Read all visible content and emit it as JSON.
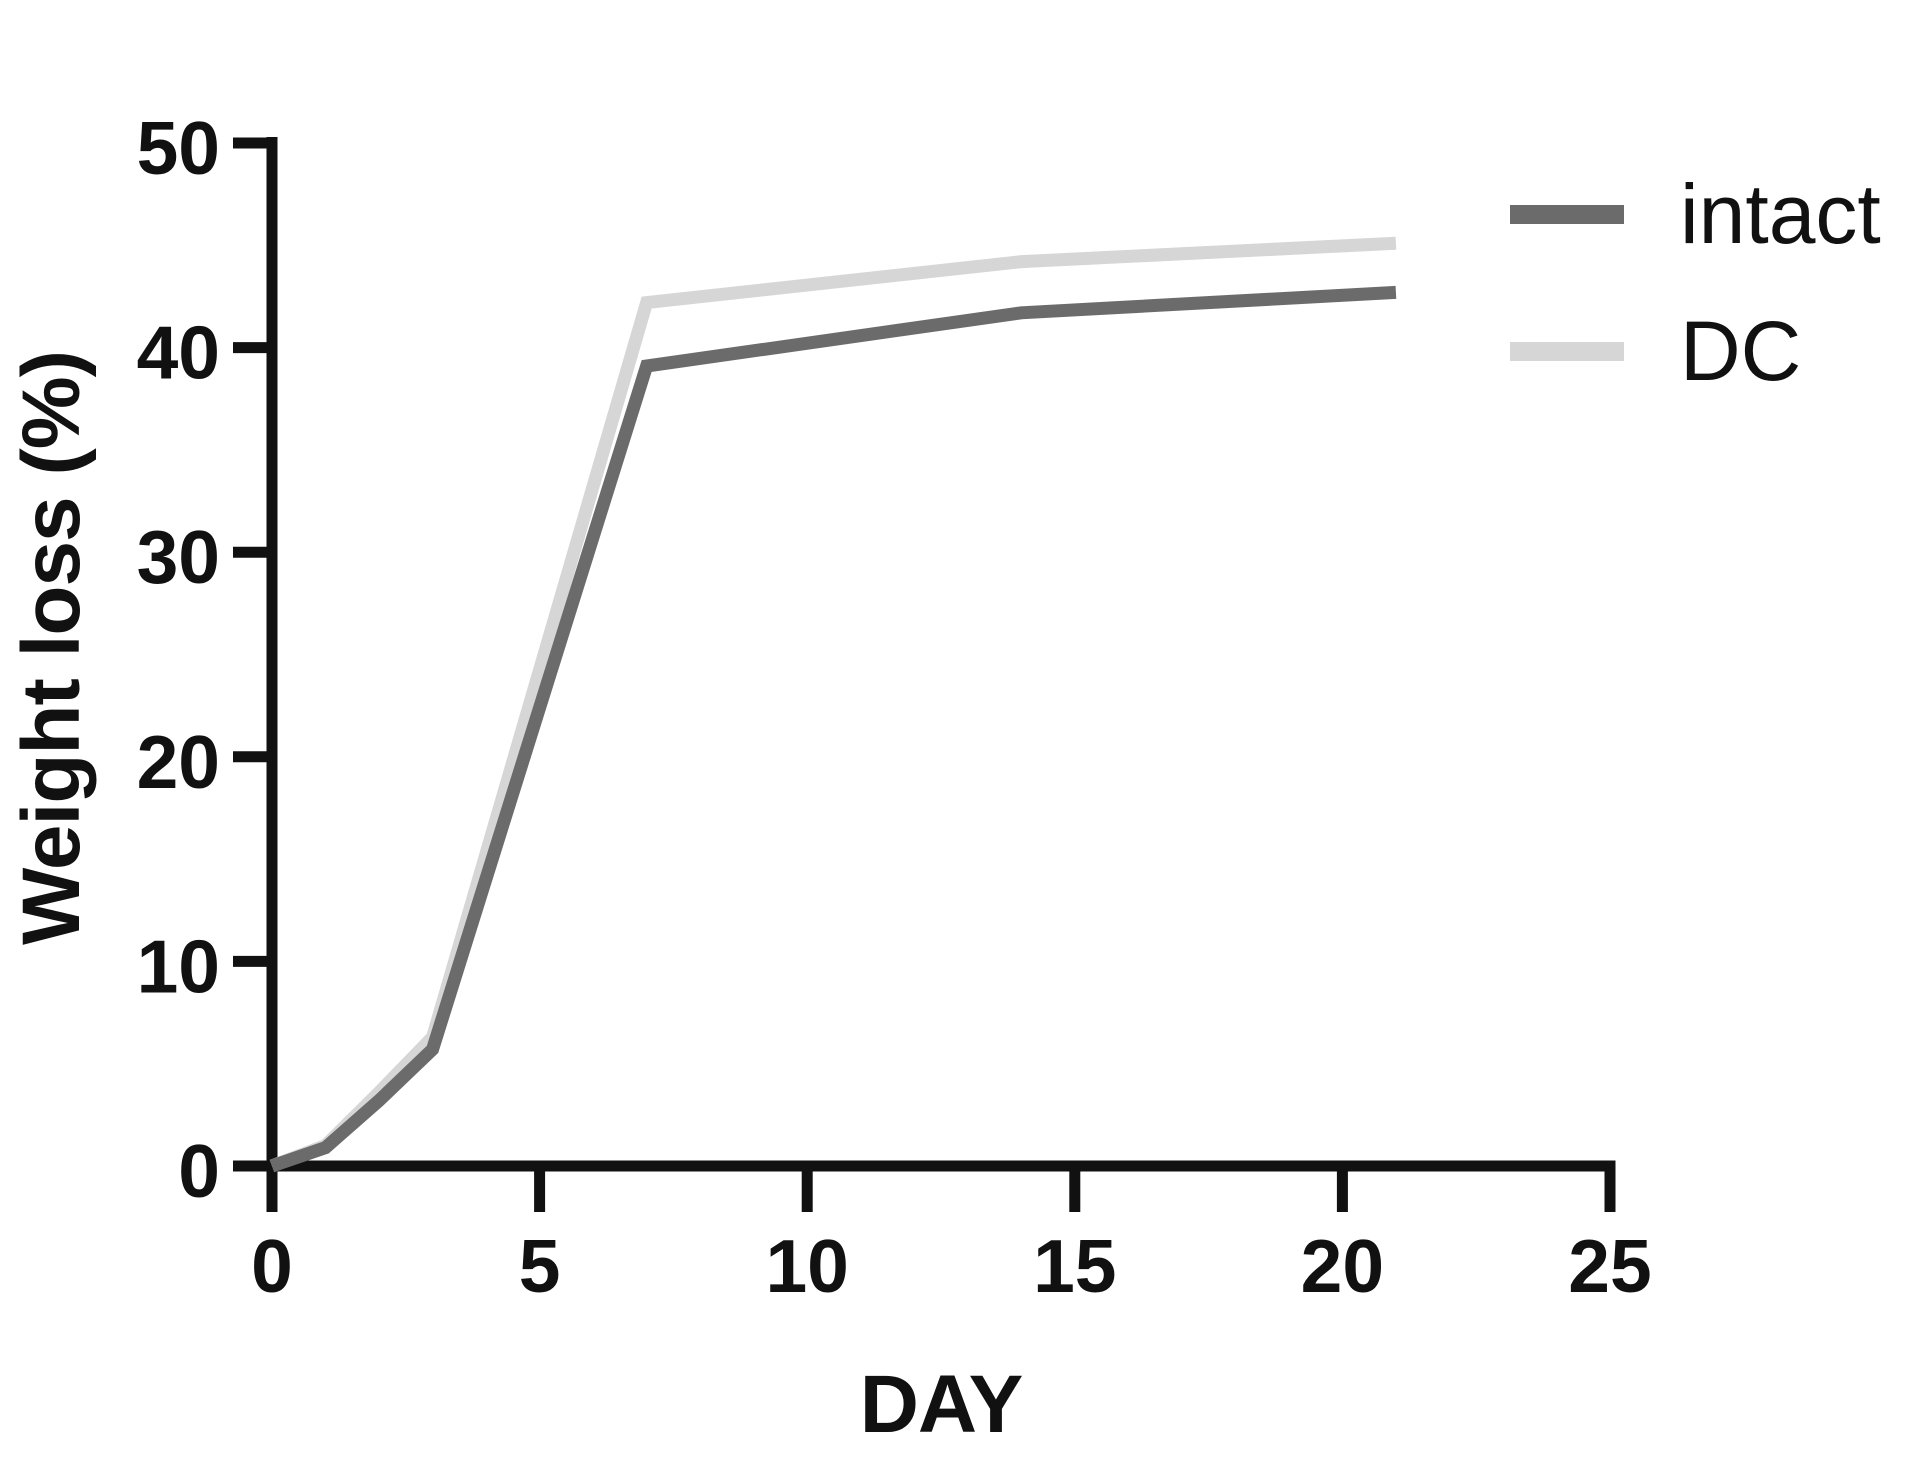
{
  "figure": {
    "background": "#ffffff",
    "text_color": "#111111"
  },
  "chart_data": {
    "type": "line",
    "title": "",
    "xlabel": "DAY",
    "ylabel": "Weight loss (%)",
    "xlim": [
      0,
      25
    ],
    "ylim": [
      0,
      50
    ],
    "x_ticks": [
      0,
      5,
      10,
      15,
      20,
      25
    ],
    "y_ticks": [
      0,
      10,
      20,
      30,
      40,
      50
    ],
    "grid": false,
    "legend_position": "upper-right-outside",
    "axis_color": "#111111",
    "series": [
      {
        "name": "DC",
        "color": "#d6d6d6",
        "x": [
          0,
          1,
          2,
          3,
          7,
          14,
          21
        ],
        "y": [
          0,
          1.0,
          3.6,
          6.3,
          42.2,
          44.2,
          45.1
        ]
      },
      {
        "name": "intact",
        "color": "#6b6b6b",
        "x": [
          0,
          1,
          2,
          3,
          7,
          14,
          21
        ],
        "y": [
          0,
          0.9,
          3.2,
          5.7,
          39.1,
          41.7,
          42.7
        ]
      }
    ]
  },
  "legend": {
    "items": [
      {
        "label": "intact",
        "color": "#6b6b6b"
      },
      {
        "label": "DC",
        "color": "#d6d6d6"
      }
    ]
  }
}
